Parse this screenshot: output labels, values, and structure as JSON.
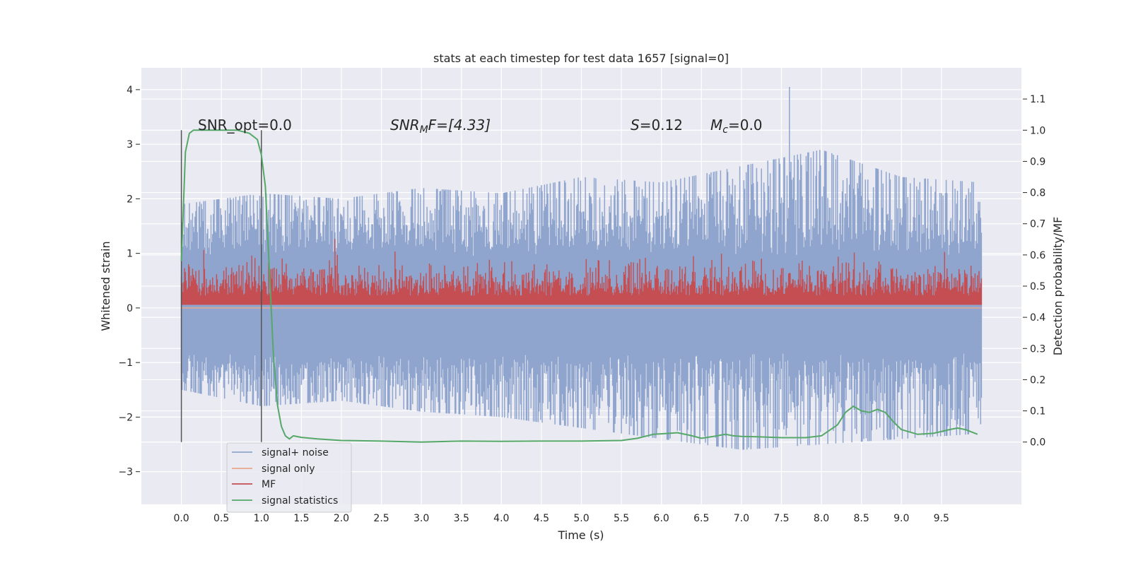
{
  "chart_data": {
    "type": "line",
    "title": "stats at each timestep for test data 1657 [signal=0]",
    "xlabel": "Time (s)",
    "ylabel_left": "Whitened strain",
    "ylabel_right": "Detection probability/MF",
    "xlim": [
      -0.5,
      10.5
    ],
    "ylim_left": [
      -3.6,
      4.4
    ],
    "ylim_right": [
      -0.2,
      1.2
    ],
    "xticks": [
      "0.0",
      "0.5",
      "1.0",
      "1.5",
      "2.0",
      "2.5",
      "3.0",
      "3.5",
      "4.0",
      "4.5",
      "5.0",
      "5.5",
      "6.0",
      "6.5",
      "7.0",
      "7.5",
      "8.0",
      "8.5",
      "9.0",
      "9.5"
    ],
    "yticks_left": [
      "4",
      "3",
      "2",
      "1",
      "0",
      "−1",
      "−2",
      "−3"
    ],
    "yticks_left_values": [
      4,
      3,
      2,
      1,
      0,
      -1,
      -2,
      -3
    ],
    "yticks_right": [
      "1.1",
      "1.0",
      "0.9",
      "0.8",
      "0.7",
      "0.6",
      "0.5",
      "0.4",
      "0.3",
      "0.2",
      "0.1",
      "0.0"
    ],
    "yticks_right_values": [
      1.1,
      1.0,
      0.9,
      0.8,
      0.7,
      0.6,
      0.5,
      0.4,
      0.3,
      0.2,
      0.1,
      0.0
    ],
    "grid": true,
    "legend_placement": "lower-left",
    "annotations": {
      "snr_opt": "SNR_opt=0.0",
      "snr_mf_sym": "SNR",
      "snr_mf_sub": "M",
      "snr_mf_rest": "F=[4.33]",
      "s_sym": "S",
      "s_rest": "=0.12",
      "mc_sym": "M",
      "mc_sub": "c",
      "mc_rest": "=0.0"
    },
    "vlines": [
      0.0,
      1.0
    ],
    "series": [
      {
        "name": "signal+ noise",
        "color": "#8fa5ce",
        "axis": "left",
        "envelope_upper": [
          1.9,
          2.1,
          2.0,
          2.2,
          2.1,
          2.4,
          2.3,
          2.6,
          2.9,
          2.4,
          2.3
        ],
        "envelope_lower": [
          -1.5,
          -1.8,
          -1.7,
          -1.9,
          -2.0,
          -2.2,
          -2.4,
          -2.6,
          -2.5,
          -2.4,
          -2.3
        ],
        "peak": {
          "x": 7.6,
          "y": 4.05
        }
      },
      {
        "name": "signal only",
        "color": "#e8a88b",
        "axis": "left",
        "x": [
          0.0,
          10.0
        ],
        "values": [
          0.0,
          0.0
        ]
      },
      {
        "name": "MF",
        "color": "#c44e52",
        "axis": "right",
        "baseline": 0.44,
        "typical_top": 0.55
      },
      {
        "name": "signal statistics",
        "color": "#55a868",
        "axis": "right",
        "x": [
          0.0,
          0.05,
          0.1,
          0.15,
          0.2,
          0.3,
          0.5,
          0.7,
          0.85,
          0.95,
          1.0,
          1.05,
          1.1,
          1.15,
          1.2,
          1.25,
          1.3,
          1.35,
          1.4,
          1.5,
          1.7,
          2.0,
          2.5,
          3.0,
          3.5,
          4.0,
          4.5,
          5.0,
          5.5,
          5.7,
          5.9,
          6.1,
          6.2,
          6.35,
          6.5,
          6.65,
          6.8,
          6.9,
          7.0,
          7.2,
          7.5,
          7.8,
          8.0,
          8.2,
          8.3,
          8.4,
          8.5,
          8.6,
          8.7,
          8.8,
          8.9,
          9.0,
          9.2,
          9.4,
          9.6,
          9.7,
          9.8,
          9.95
        ],
        "values": [
          0.58,
          0.93,
          0.99,
          1.0,
          1.0,
          1.0,
          1.0,
          1.0,
          0.99,
          0.97,
          0.92,
          0.82,
          0.55,
          0.28,
          0.12,
          0.05,
          0.02,
          0.01,
          0.02,
          0.015,
          0.01,
          0.005,
          0.003,
          0.0,
          0.003,
          0.002,
          0.003,
          0.003,
          0.005,
          0.012,
          0.025,
          0.028,
          0.03,
          0.022,
          0.012,
          0.018,
          0.025,
          0.02,
          0.018,
          0.017,
          0.014,
          0.014,
          0.02,
          0.055,
          0.095,
          0.115,
          0.1,
          0.095,
          0.105,
          0.095,
          0.065,
          0.04,
          0.025,
          0.028,
          0.04,
          0.045,
          0.04,
          0.025
        ]
      }
    ]
  }
}
